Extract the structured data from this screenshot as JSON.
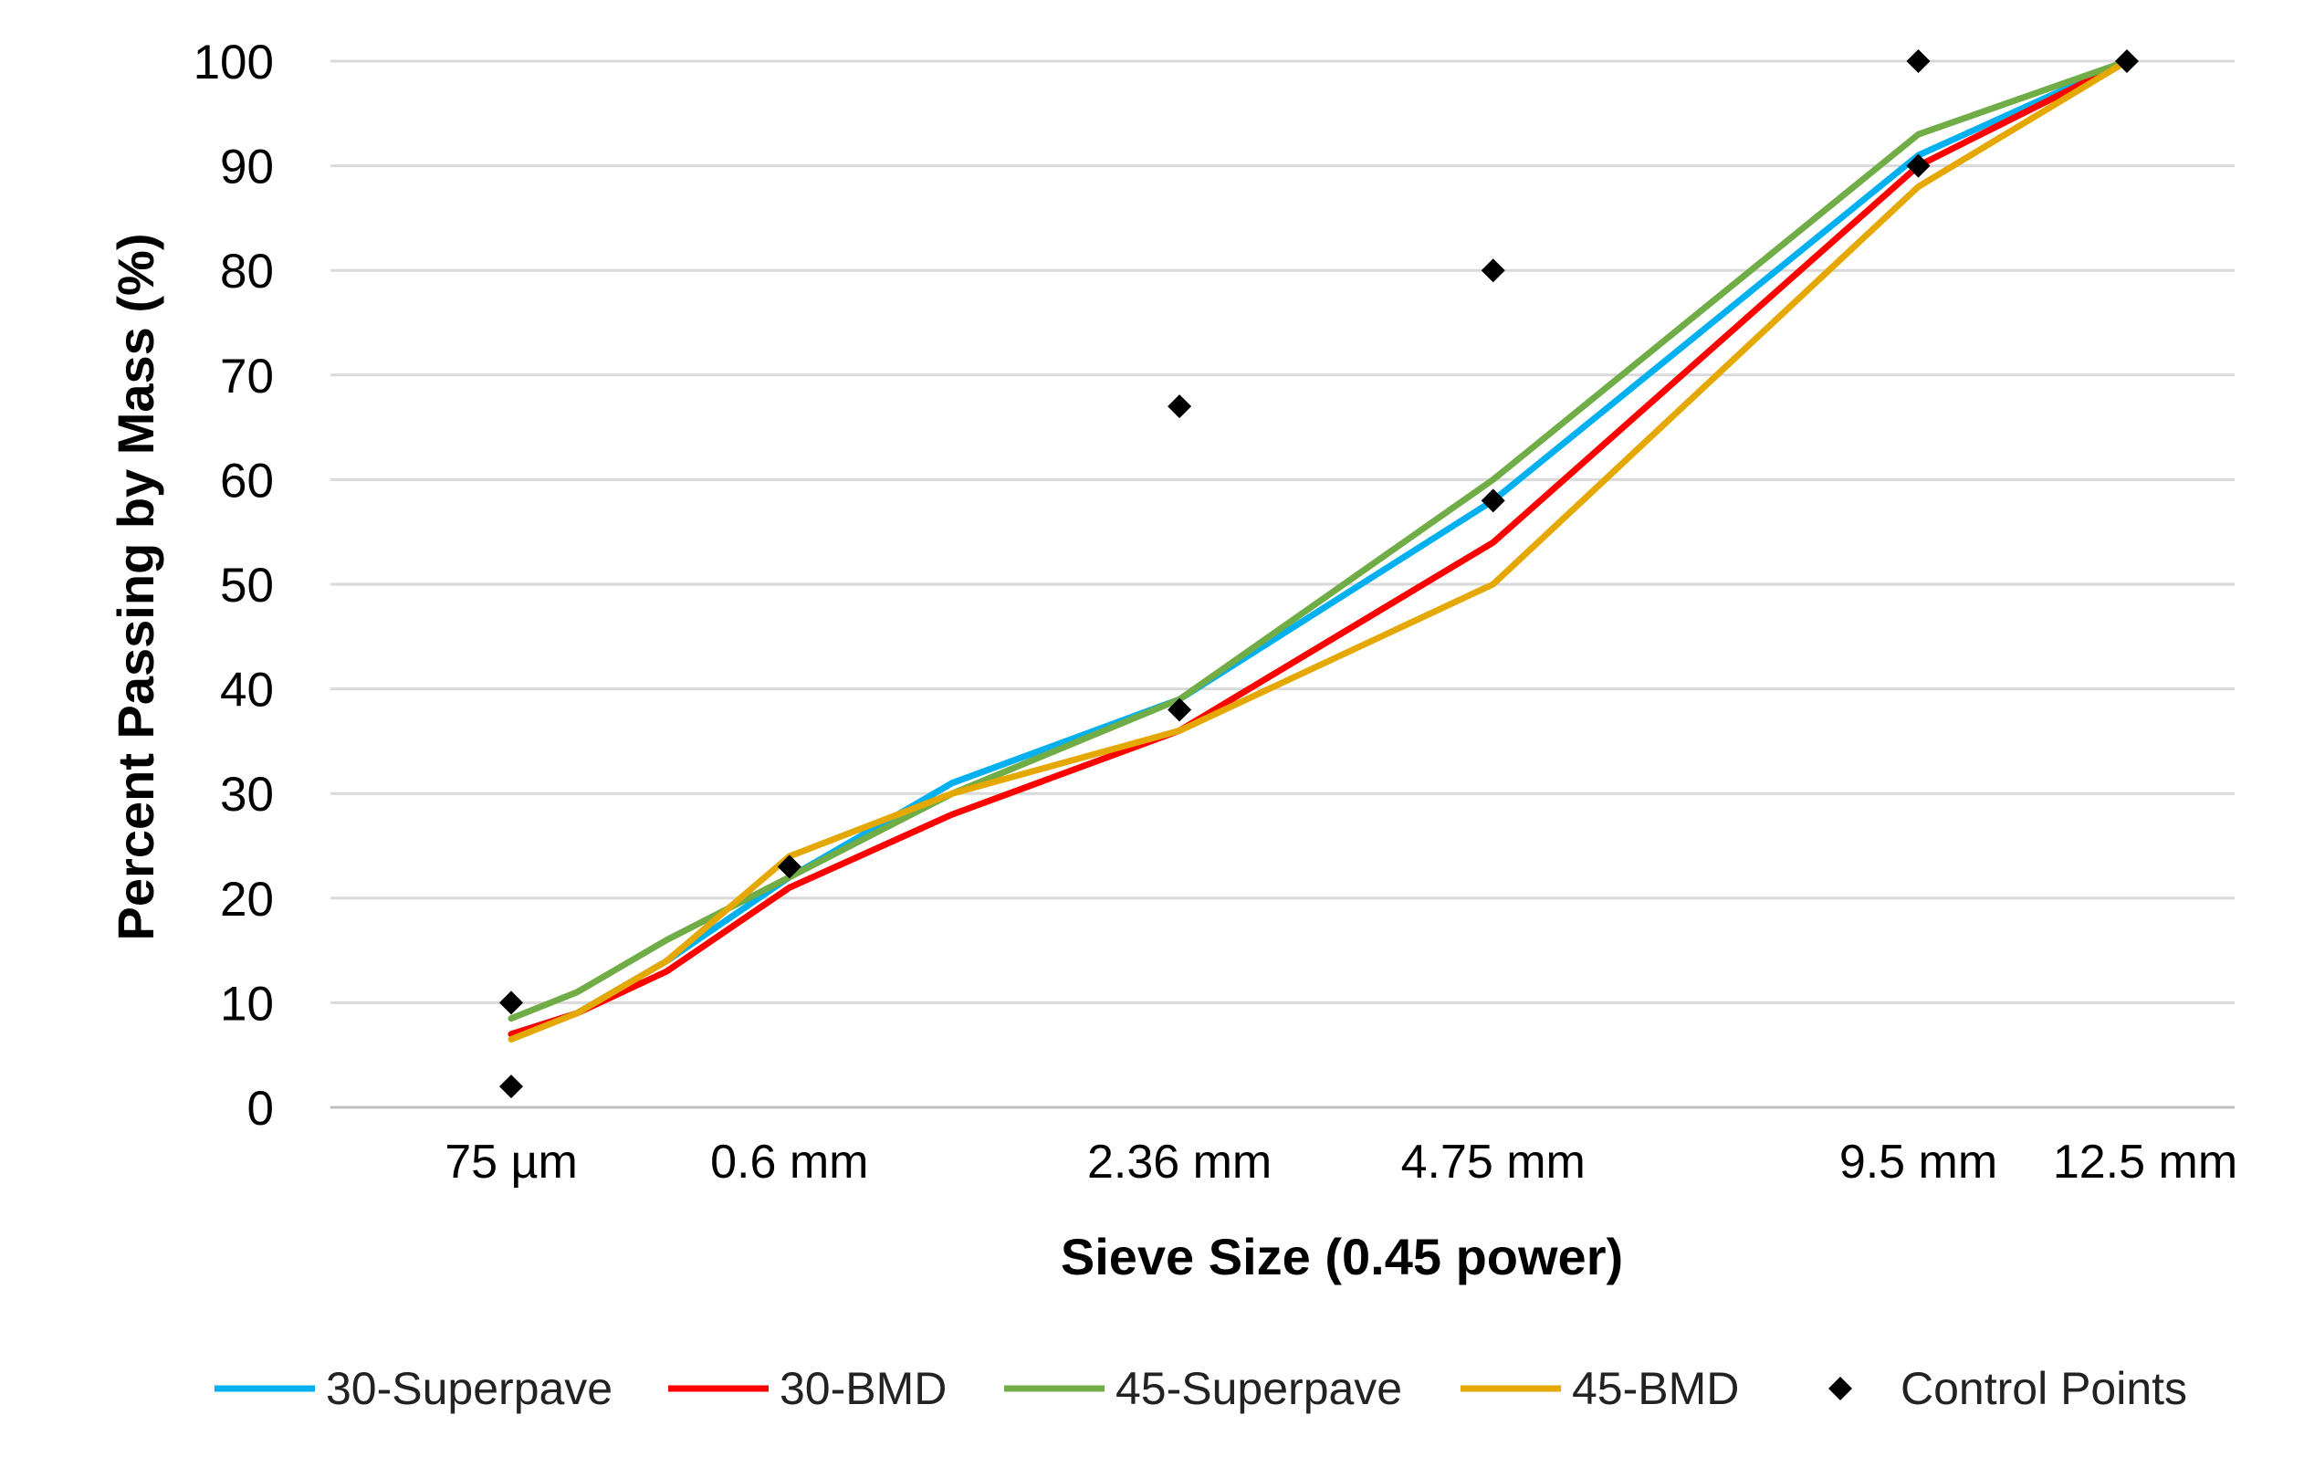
{
  "chart_data": {
    "type": "line",
    "title": "",
    "xlabel": "Sieve Size (0.45 power)",
    "ylabel": "Percent Passing by Mass (%)",
    "x_scale": "0.45 power",
    "ylim": [
      0,
      100
    ],
    "yticks": [
      0,
      10,
      20,
      30,
      40,
      50,
      60,
      70,
      80,
      90,
      100
    ],
    "grid": "horizontal",
    "legend_position": "bottom",
    "xticks": [
      {
        "label": "75 µm",
        "size_mm": 0.075
      },
      {
        "label": "0.6 mm",
        "size_mm": 0.6
      },
      {
        "label": "2.36 mm",
        "size_mm": 2.36
      },
      {
        "label": "4.75 mm",
        "size_mm": 4.75
      },
      {
        "label": "9.5 mm",
        "size_mm": 9.5
      },
      {
        "label": "12.5 mm",
        "size_mm": 12.5
      }
    ],
    "sieve_sizes_mm": [
      0.075,
      0.15,
      0.3,
      0.6,
      1.18,
      2.36,
      4.75,
      9.5,
      12.5
    ],
    "series": [
      {
        "name": "30-Superpave",
        "color": "#00B0F0",
        "values": [
          7,
          9,
          14,
          22,
          31,
          39,
          58,
          91,
          100
        ]
      },
      {
        "name": "30-BMD",
        "color": "#FF0000",
        "values": [
          7,
          9,
          13,
          21,
          28,
          36,
          54,
          90,
          100
        ]
      },
      {
        "name": "45-Superpave",
        "color": "#70AD47",
        "values": [
          8.5,
          11,
          16,
          22,
          30,
          39,
          60,
          93,
          100
        ]
      },
      {
        "name": "45-BMD",
        "color": "#E5A800",
        "values": [
          6.5,
          9,
          14,
          24,
          30,
          36,
          50,
          88,
          100
        ]
      }
    ],
    "control_points": {
      "name": "Control Points",
      "color": "#000000",
      "points": [
        {
          "size_mm": 0.075,
          "value": 2
        },
        {
          "size_mm": 0.075,
          "value": 10
        },
        {
          "size_mm": 0.6,
          "value": 23
        },
        {
          "size_mm": 2.36,
          "value": 38
        },
        {
          "size_mm": 2.36,
          "value": 67
        },
        {
          "size_mm": 4.75,
          "value": 58
        },
        {
          "size_mm": 4.75,
          "value": 80
        },
        {
          "size_mm": 9.5,
          "value": 90
        },
        {
          "size_mm": 9.5,
          "value": 100
        },
        {
          "size_mm": 12.5,
          "value": 100
        }
      ]
    }
  }
}
